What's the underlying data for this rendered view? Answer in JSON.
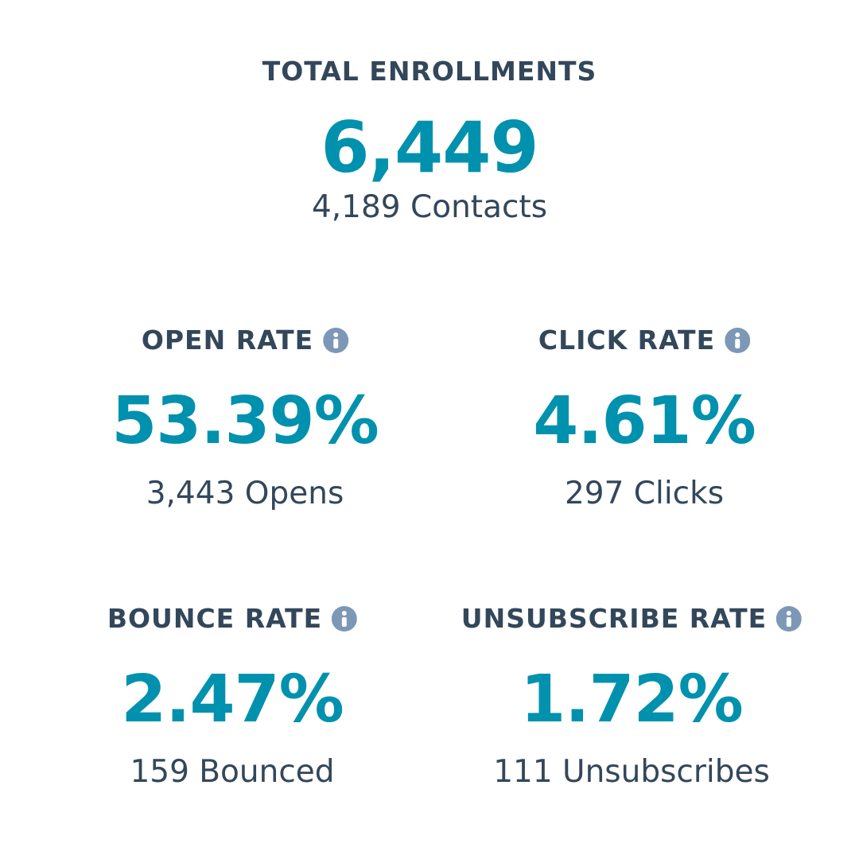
{
  "summary": {
    "label": "TOTAL ENROLLMENTS",
    "value": "6,449",
    "detail": "4,189 Contacts"
  },
  "metrics": [
    {
      "label": "OPEN RATE",
      "value": "53.39%",
      "detail": "3,443 Opens"
    },
    {
      "label": "CLICK RATE",
      "value": "4.61%",
      "detail": "297 Clicks"
    },
    {
      "label": "BOUNCE RATE",
      "value": "2.47%",
      "detail": "159 Bounced"
    },
    {
      "label": "UNSUBSCRIBE RATE",
      "value": "1.72%",
      "detail": "111 Unsubscribes"
    }
  ]
}
